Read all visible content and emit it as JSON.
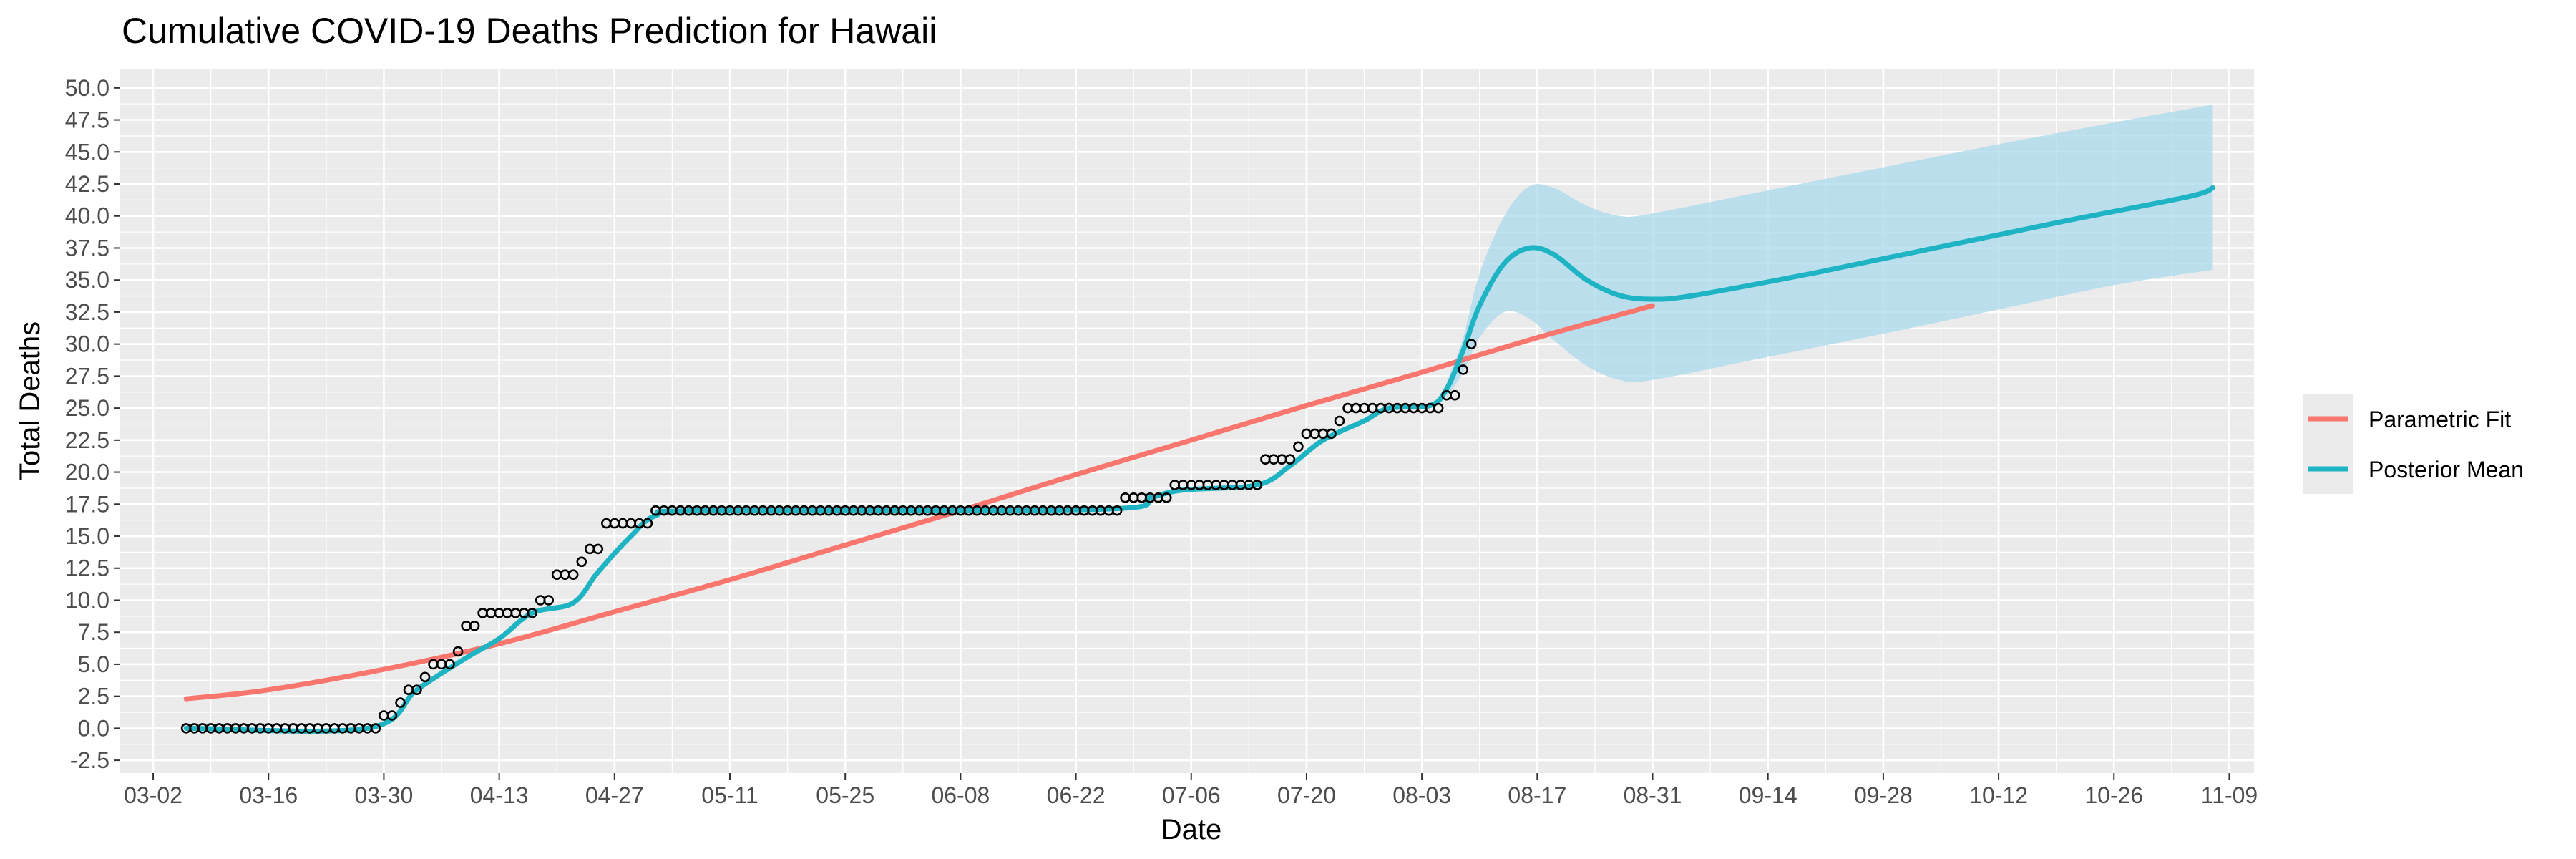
{
  "chart_data": {
    "type": "line",
    "title": "Cumulative COVID-19 Deaths Prediction for Hawaii",
    "xlabel": "Date",
    "ylabel": "Total Deaths",
    "x_type": "date",
    "xlim": [
      "2020-02-27",
      "2020-11-12"
    ],
    "ylim": [
      -3.5,
      51.5
    ],
    "y_ticks": [
      -2.5,
      0.0,
      2.5,
      5.0,
      7.5,
      10.0,
      12.5,
      15.0,
      17.5,
      20.0,
      22.5,
      25.0,
      27.5,
      30.0,
      32.5,
      35.0,
      37.5,
      40.0,
      42.5,
      45.0,
      47.5,
      50.0
    ],
    "y_tick_labels": [
      "-2.5",
      "0.0",
      "2.5",
      "5.0",
      "7.5",
      "10.0",
      "12.5",
      "15.0",
      "17.5",
      "20.0",
      "22.5",
      "25.0",
      "27.5",
      "30.0",
      "32.5",
      "35.0",
      "37.5",
      "40.0",
      "42.5",
      "45.0",
      "47.5",
      "50.0"
    ],
    "x_ticks": [
      "2020-03-02",
      "2020-03-16",
      "2020-03-30",
      "2020-04-13",
      "2020-04-27",
      "2020-05-11",
      "2020-05-25",
      "2020-06-08",
      "2020-06-22",
      "2020-07-06",
      "2020-07-20",
      "2020-08-03",
      "2020-08-17",
      "2020-08-31",
      "2020-09-14",
      "2020-09-28",
      "2020-10-12",
      "2020-10-26",
      "2020-11-09"
    ],
    "x_tick_labels": [
      "03-02",
      "03-16",
      "03-30",
      "04-13",
      "04-27",
      "05-11",
      "05-25",
      "06-08",
      "06-22",
      "07-06",
      "07-20",
      "08-03",
      "08-17",
      "08-31",
      "09-14",
      "09-28",
      "10-12",
      "10-26",
      "11-09"
    ],
    "grid": true,
    "legend": {
      "position": "right",
      "entries": [
        "Parametric Fit",
        "Posterior Mean"
      ]
    },
    "colors": {
      "parametric": "#F8766D",
      "posterior": "#1FB4C4",
      "band": "#A6D8EC",
      "panel": "#EBEBEB",
      "grid": "#FFFFFF"
    },
    "observed": {
      "start": "2020-03-06",
      "values": [
        0,
        0,
        0,
        0,
        0,
        0,
        0,
        0,
        0,
        0,
        0,
        0,
        0,
        0,
        0,
        0,
        0,
        0,
        0,
        0,
        0,
        0,
        0,
        0,
        1,
        1,
        2,
        3,
        3,
        4,
        5,
        5,
        5,
        6,
        8,
        8,
        9,
        9,
        9,
        9,
        9,
        9,
        9,
        10,
        10,
        12,
        12,
        12,
        13,
        14,
        14,
        16,
        16,
        16,
        16,
        16,
        16,
        17,
        17,
        17,
        17,
        17,
        17,
        17,
        17,
        17,
        17,
        17,
        17,
        17,
        17,
        17,
        17,
        17,
        17,
        17,
        17,
        17,
        17,
        17,
        17,
        17,
        17,
        17,
        17,
        17,
        17,
        17,
        17,
        17,
        17,
        17,
        17,
        17,
        17,
        17,
        17,
        17,
        17,
        17,
        17,
        17,
        17,
        17,
        17,
        17,
        17,
        17,
        17,
        17,
        17,
        17,
        17,
        17,
        18,
        18,
        18,
        18,
        18,
        18,
        19,
        19,
        19,
        19,
        19,
        19,
        19,
        19,
        19,
        19,
        19,
        21,
        21,
        21,
        21,
        22,
        23,
        23,
        23,
        23,
        24,
        25,
        25,
        25,
        25,
        25,
        25,
        25,
        25,
        25,
        25,
        25,
        25,
        26,
        26,
        28,
        30
      ]
    },
    "series": [
      {
        "name": "Parametric Fit",
        "points": [
          [
            "2020-03-06",
            2.3
          ],
          [
            "2020-03-16",
            3.0
          ],
          [
            "2020-03-30",
            4.6
          ],
          [
            "2020-04-13",
            6.6
          ],
          [
            "2020-04-27",
            9.1
          ],
          [
            "2020-05-11",
            11.6
          ],
          [
            "2020-05-25",
            14.3
          ],
          [
            "2020-06-08",
            17.0
          ],
          [
            "2020-06-22",
            19.8
          ],
          [
            "2020-07-06",
            22.5
          ],
          [
            "2020-07-20",
            25.2
          ],
          [
            "2020-08-03",
            27.8
          ],
          [
            "2020-08-17",
            30.5
          ],
          [
            "2020-08-31",
            33.0
          ]
        ]
      },
      {
        "name": "Posterior Mean",
        "points": [
          [
            "2020-03-06",
            0.0
          ],
          [
            "2020-03-28",
            0.0
          ],
          [
            "2020-04-03",
            3.0
          ],
          [
            "2020-04-09",
            5.5
          ],
          [
            "2020-04-13",
            7.0
          ],
          [
            "2020-04-17",
            9.0
          ],
          [
            "2020-04-22",
            9.8
          ],
          [
            "2020-04-25",
            12.2
          ],
          [
            "2020-04-29",
            15.0
          ],
          [
            "2020-05-02",
            16.6
          ],
          [
            "2020-05-08",
            17.0
          ],
          [
            "2020-06-25",
            17.1
          ],
          [
            "2020-07-01",
            18.0
          ],
          [
            "2020-07-05",
            18.6
          ],
          [
            "2020-07-14",
            19.0
          ],
          [
            "2020-07-18",
            20.5
          ],
          [
            "2020-07-22",
            22.5
          ],
          [
            "2020-07-27",
            24.0
          ],
          [
            "2020-07-30",
            25.0
          ],
          [
            "2020-08-04",
            25.2
          ],
          [
            "2020-08-06",
            26.5
          ],
          [
            "2020-08-08",
            29.5
          ],
          [
            "2020-08-10",
            33.0
          ],
          [
            "2020-08-13",
            36.3
          ],
          [
            "2020-08-16",
            37.5
          ],
          [
            "2020-08-19",
            37.0
          ],
          [
            "2020-08-23",
            35.0
          ],
          [
            "2020-08-27",
            33.8
          ],
          [
            "2020-08-31",
            33.5
          ],
          [
            "2020-09-05",
            33.8
          ],
          [
            "2020-09-20",
            35.6
          ],
          [
            "2020-10-05",
            37.6
          ],
          [
            "2020-10-20",
            39.6
          ],
          [
            "2020-11-04",
            41.5
          ],
          [
            "2020-11-07",
            42.2
          ]
        ]
      }
    ],
    "band": {
      "label": "",
      "upper": [
        [
          "2020-08-06",
          27.0
        ],
        [
          "2020-08-08",
          30.5
        ],
        [
          "2020-08-10",
          35.5
        ],
        [
          "2020-08-13",
          40.0
        ],
        [
          "2020-08-16",
          42.3
        ],
        [
          "2020-08-19",
          42.2
        ],
        [
          "2020-08-23",
          40.8
        ],
        [
          "2020-08-27",
          40.0
        ],
        [
          "2020-08-31",
          40.2
        ],
        [
          "2020-09-14",
          42.0
        ],
        [
          "2020-09-28",
          43.8
        ],
        [
          "2020-10-12",
          45.6
        ],
        [
          "2020-10-26",
          47.3
        ],
        [
          "2020-11-07",
          48.7
        ]
      ],
      "lower": [
        [
          "2020-08-06",
          25.8
        ],
        [
          "2020-08-08",
          27.8
        ],
        [
          "2020-08-10",
          30.5
        ],
        [
          "2020-08-13",
          32.5
        ],
        [
          "2020-08-16",
          32.0
        ],
        [
          "2020-08-19",
          30.3
        ],
        [
          "2020-08-23",
          28.3
        ],
        [
          "2020-08-27",
          27.2
        ],
        [
          "2020-08-31",
          27.2
        ],
        [
          "2020-09-14",
          29.0
        ],
        [
          "2020-09-28",
          30.8
        ],
        [
          "2020-10-12",
          32.7
        ],
        [
          "2020-10-26",
          34.6
        ],
        [
          "2020-11-07",
          35.8
        ]
      ]
    }
  }
}
